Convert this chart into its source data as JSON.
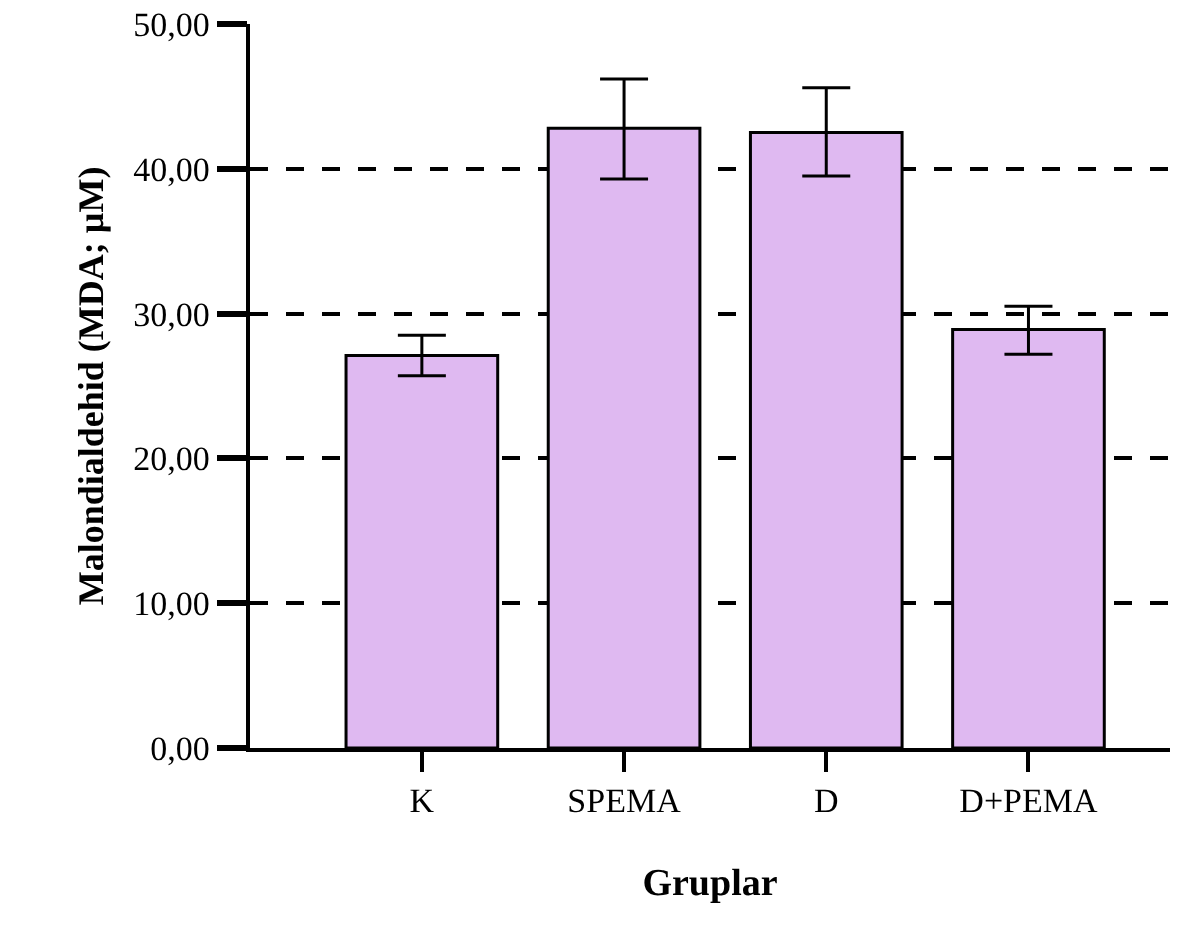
{
  "chart_data": {
    "type": "bar",
    "xlabel": "Gruplar",
    "ylabel": "Malondialdehid (MDA; µM)",
    "categories": [
      "K",
      "SPEMA",
      "D",
      "D+PEMA"
    ],
    "values": [
      27.1,
      42.8,
      42.5,
      28.9
    ],
    "errors": [
      [
        25.7,
        28.5
      ],
      [
        39.3,
        46.2
      ],
      [
        39.5,
        45.6
      ],
      [
        27.2,
        30.5
      ]
    ],
    "color": "#dfb9f1",
    "ylim": [
      0,
      50
    ],
    "yticks": [
      {
        "value": 0,
        "label": "0,00"
      },
      {
        "value": 10,
        "label": "10,00"
      },
      {
        "value": 20,
        "label": "20,00"
      },
      {
        "value": 30,
        "label": "30,00"
      },
      {
        "value": 40,
        "label": "40,00"
      },
      {
        "value": 50,
        "label": "50,00"
      }
    ],
    "grid": "y"
  }
}
